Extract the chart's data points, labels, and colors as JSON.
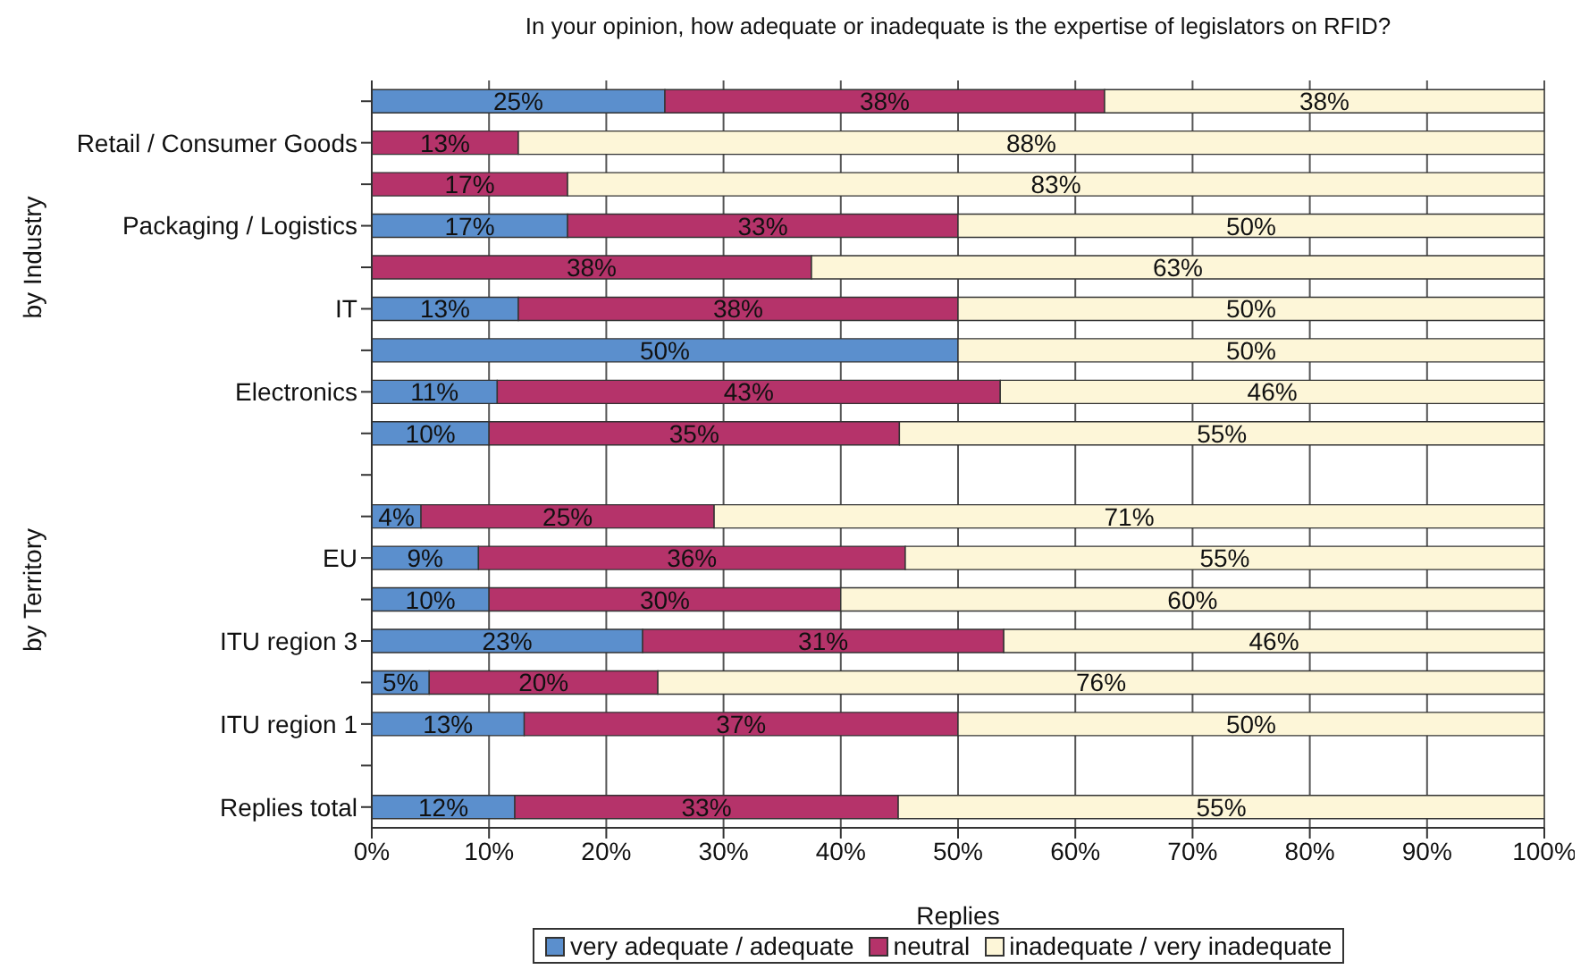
{
  "chart_data": {
    "type": "bar",
    "orientation": "horizontal",
    "stacked": true,
    "title": "In your opinion, how adequate or inadequate is the expertise of legislators on RFID?",
    "xlabel": "Replies",
    "annotations": [
      "by Industry",
      "by Territory"
    ],
    "categories": [
      null,
      "Retail / Consumer Goods",
      null,
      "Packaging / Logistics",
      null,
      "IT",
      null,
      "Electronics",
      null,
      null,
      null,
      "EU",
      null,
      "ITU region 3",
      null,
      "ITU region 1",
      null,
      "Replies total"
    ],
    "series": [
      {
        "name": "very adequate / adequate",
        "color": "#5b8fcd",
        "values": [
          25,
          null,
          null,
          16.7,
          null,
          12.5,
          50,
          10.7,
          10,
          null,
          4.2,
          9.1,
          10,
          23.1,
          4.9,
          13,
          null,
          12.2
        ],
        "value_labels": [
          "25%",
          null,
          null,
          "17%",
          null,
          "13%",
          "50%",
          "11%",
          "10%",
          null,
          "4%",
          "9%",
          "10%",
          "23%",
          "5%",
          "13%",
          null,
          "12%"
        ]
      },
      {
        "name": "neutral",
        "color": "#b5336a",
        "values": [
          37.5,
          12.5,
          16.7,
          33.3,
          37.5,
          37.5,
          null,
          42.9,
          35,
          null,
          25,
          36.4,
          30,
          30.8,
          19.5,
          37,
          null,
          32.7
        ],
        "value_labels": [
          "38%",
          "13%",
          "17%",
          "33%",
          "38%",
          "38%",
          null,
          "43%",
          "35%",
          null,
          "25%",
          "36%",
          "30%",
          "31%",
          "20%",
          "37%",
          null,
          "33%"
        ]
      },
      {
        "name": "inadequate / very inadequate",
        "color": "#fdf6d8",
        "values": [
          37.5,
          87.5,
          83.3,
          50,
          62.5,
          50,
          50,
          46.4,
          55,
          null,
          70.8,
          54.5,
          60,
          46.2,
          75.6,
          50,
          null,
          55.1
        ],
        "value_labels": [
          "38%",
          "88%",
          "83%",
          "50%",
          "63%",
          "50%",
          "50%",
          "46%",
          "55%",
          null,
          "71%",
          "55%",
          "60%",
          "46%",
          "76%",
          "50%",
          null,
          "55%"
        ]
      }
    ],
    "xlim": [
      0,
      100
    ],
    "xticks": [
      {
        "value": 0,
        "label": "0%"
      },
      {
        "value": 10,
        "label": "10%"
      },
      {
        "value": 20,
        "label": "20%"
      },
      {
        "value": 30,
        "label": "30%"
      },
      {
        "value": 40,
        "label": "40%"
      },
      {
        "value": 50,
        "label": "50%"
      },
      {
        "value": 60,
        "label": "60%"
      },
      {
        "value": 70,
        "label": "70%"
      },
      {
        "value": 80,
        "label": "80%"
      },
      {
        "value": 90,
        "label": "90%"
      },
      {
        "value": 100,
        "label": "100%"
      }
    ],
    "grid": "x",
    "legend": "bottom"
  }
}
